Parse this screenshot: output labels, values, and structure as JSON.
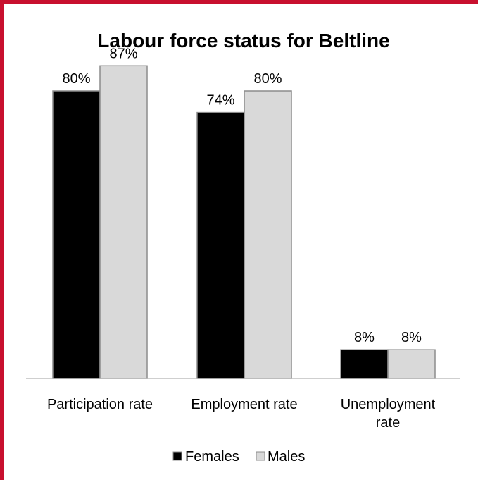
{
  "colors": {
    "frame": "#c8102e",
    "females": "#000000",
    "males": "#d9d9d9",
    "bar_outline": "#8c8c8c",
    "axis": "#bfbfbf"
  },
  "chart_data": {
    "type": "bar",
    "title": "Labour force status for Beltline",
    "xlabel": "",
    "ylabel": "",
    "ylim": [
      0,
      100
    ],
    "grid": false,
    "legend_position": "bottom",
    "value_format": "percent",
    "categories": [
      "Participation rate",
      "Employment rate",
      "Unemployment rate"
    ],
    "category_lines": [
      [
        "Participation rate"
      ],
      [
        "Employment rate"
      ],
      [
        "Unemployment",
        "rate"
      ]
    ],
    "series": [
      {
        "name": "Females",
        "values": [
          80,
          74,
          8
        ],
        "color": "#000000"
      },
      {
        "name": "Males",
        "values": [
          87,
          80,
          8
        ],
        "color": "#d9d9d9"
      }
    ]
  }
}
